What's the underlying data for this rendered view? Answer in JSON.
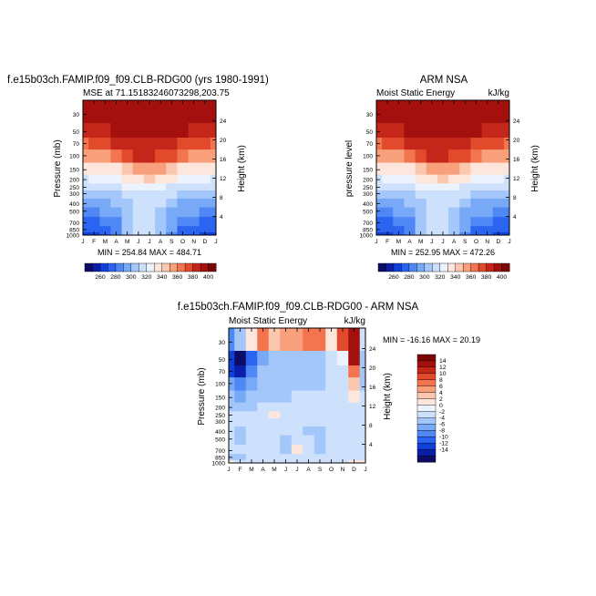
{
  "month_labels": [
    "J",
    "F",
    "M",
    "A",
    "M",
    "J",
    "J",
    "A",
    "S",
    "O",
    "N",
    "D",
    "J"
  ],
  "pressure_ticks": [
    "30",
    "50",
    "70",
    "100",
    "150",
    "200",
    "250",
    "300",
    "400",
    "500",
    "700",
    "850",
    "1000"
  ],
  "panels": [
    {
      "title": "f.e15b03ch.FAMIP.f09_f09.CLB-RDG00 (yrs 1980-1991)",
      "left_label": "MSE at 71.15183246073298,203.75",
      "right_label": "",
      "ylabel": "Pressure (mb)",
      "ylabel2": "Height (km)",
      "stats": "MIN = 254.84  MAX = 484.71",
      "height_ticks": [
        "24",
        "20",
        "16",
        "12",
        "8",
        "4"
      ]
    },
    {
      "title": "ARM NSA",
      "left_label": "Moist Static Energy",
      "right_label": "kJ/kg",
      "ylabel": "pressure  level",
      "ylabel2": "Height (km)",
      "stats": "MIN = 252.95  MAX = 472.26",
      "height_ticks": [
        "24",
        "20",
        "16",
        "12",
        "8",
        "4"
      ]
    },
    {
      "title": "f.e15b03ch.FAMIP.f09_f09.CLB-RDG00 - ARM NSA",
      "left_label": "Moist Static Energy",
      "right_label": "kJ/kg",
      "ylabel": "Pressure (mb)",
      "ylabel2": "Height (km)",
      "stats": "MIN = -16.16  MAX =  20.19",
      "height_ticks": [
        "24",
        "20",
        "16",
        "12",
        "8",
        "4"
      ]
    }
  ],
  "colorbar_top": {
    "colors": [
      "#0c0c66",
      "#0a1ea8",
      "#1040d8",
      "#2a64f0",
      "#4f87f5",
      "#78a9f7",
      "#a3c6fb",
      "#cde0fc",
      "#ecf3fe",
      "#fde7dc",
      "#fbc7ae",
      "#f8a07c",
      "#f2754f",
      "#e14a2a",
      "#c5261a",
      "#a3100d",
      "#7a0505"
    ],
    "labels": [
      "260",
      "280",
      "300",
      "320",
      "340",
      "360",
      "380",
      "400"
    ]
  },
  "colorbar_diff": {
    "colors": [
      "#0c0c66",
      "#0a1ea8",
      "#1040d8",
      "#2a64f0",
      "#4f87f5",
      "#78a9f7",
      "#a3c6fb",
      "#cde0fc",
      "#ecf3fe",
      "#fde7dc",
      "#fbc7ae",
      "#f8a07c",
      "#f2754f",
      "#e14a2a",
      "#c5261a",
      "#a3100d",
      "#7a0505"
    ],
    "labels": [
      "14",
      "12",
      "10",
      "8",
      "6",
      "4",
      "2",
      "0",
      "-2",
      "-4",
      "-6",
      "-8",
      "-10",
      "-12",
      "-14"
    ]
  },
  "chart_data": [
    {
      "type": "heatmap",
      "title": "f.e15b03ch.FAMIP.f09_f09.CLB-RDG00 (yrs 1980-1991)",
      "subtitle": "MSE at 71.15183246073298,203.75",
      "xlabel": "",
      "ylabel": "Pressure (mb)",
      "ylabel_right": "Height (km)",
      "x": [
        "J",
        "F",
        "M",
        "A",
        "M",
        "J",
        "J",
        "A",
        "S",
        "O",
        "N",
        "D",
        "J"
      ],
      "y_pressure": [
        30,
        50,
        70,
        100,
        150,
        200,
        250,
        300,
        400,
        500,
        700,
        850,
        1000
      ],
      "ylim": [
        1000,
        20
      ],
      "min": 254.84,
      "max": 484.71,
      "colorbar_levels": [
        260,
        270,
        280,
        290,
        300,
        310,
        320,
        330,
        340,
        350,
        360,
        370,
        380,
        390,
        400
      ],
      "values": [
        [
          400,
          400,
          400,
          400,
          400,
          400,
          400,
          400,
          400,
          400,
          400,
          400,
          400
        ],
        [
          396,
          397,
          398,
          400,
          400,
          400,
          400,
          400,
          400,
          400,
          398,
          397,
          396
        ],
        [
          378,
          380,
          384,
          390,
          395,
          398,
          398,
          397,
          392,
          388,
          382,
          380,
          378
        ],
        [
          362,
          364,
          368,
          375,
          384,
          390,
          390,
          388,
          380,
          372,
          366,
          364,
          362
        ],
        [
          340,
          341,
          343,
          349,
          358,
          366,
          366,
          363,
          354,
          347,
          343,
          341,
          340
        ],
        [
          329,
          330,
          331,
          335,
          343,
          349,
          350,
          347,
          340,
          334,
          331,
          330,
          329
        ],
        [
          322,
          322,
          323,
          326,
          332,
          336,
          337,
          335,
          329,
          325,
          323,
          322,
          322
        ],
        [
          316,
          316,
          317,
          318,
          323,
          327,
          328,
          326,
          321,
          318,
          317,
          316,
          316
        ],
        [
          306,
          306,
          307,
          310,
          318,
          323,
          324,
          321,
          313,
          309,
          307,
          306,
          306
        ],
        [
          299,
          299,
          300,
          305,
          315,
          321,
          322,
          319,
          309,
          303,
          300,
          299,
          299
        ],
        [
          288,
          288,
          290,
          298,
          313,
          320,
          321,
          317,
          305,
          294,
          290,
          288,
          288
        ],
        [
          282,
          282,
          285,
          294,
          311,
          320,
          321,
          316,
          301,
          289,
          285,
          282,
          282
        ],
        [
          277,
          276,
          280,
          292,
          310,
          320,
          321,
          315,
          299,
          286,
          280,
          277,
          277
        ]
      ]
    },
    {
      "type": "heatmap",
      "title": "ARM NSA",
      "subtitle": "Moist Static Energy",
      "xlabel": "",
      "ylabel": "pressure  level",
      "ylabel_right": "Height (km)",
      "units": "kJ/kg",
      "x": [
        "J",
        "F",
        "M",
        "A",
        "M",
        "J",
        "J",
        "A",
        "S",
        "O",
        "N",
        "D",
        "J"
      ],
      "y_pressure": [
        30,
        50,
        70,
        100,
        150,
        200,
        250,
        300,
        400,
        500,
        700,
        850,
        1000
      ],
      "ylim": [
        1000,
        20
      ],
      "min": 252.95,
      "max": 472.26,
      "colorbar_levels": [
        260,
        270,
        280,
        290,
        300,
        310,
        320,
        330,
        340,
        350,
        360,
        370,
        380,
        390,
        400
      ],
      "values": [
        [
          400,
          400,
          400,
          400,
          400,
          400,
          400,
          400,
          400,
          400,
          400,
          400,
          400
        ],
        [
          396,
          397,
          398,
          400,
          400,
          400,
          400,
          400,
          400,
          400,
          398,
          397,
          396
        ],
        [
          378,
          380,
          384,
          390,
          395,
          398,
          398,
          397,
          392,
          388,
          382,
          380,
          378
        ],
        [
          362,
          364,
          368,
          375,
          384,
          390,
          390,
          388,
          380,
          372,
          366,
          364,
          362
        ],
        [
          340,
          341,
          343,
          349,
          358,
          366,
          366,
          363,
          354,
          347,
          343,
          341,
          340
        ],
        [
          329,
          330,
          331,
          335,
          343,
          349,
          350,
          347,
          340,
          334,
          331,
          330,
          329
        ],
        [
          322,
          322,
          323,
          326,
          332,
          336,
          337,
          335,
          329,
          325,
          323,
          322,
          322
        ],
        [
          316,
          316,
          317,
          318,
          323,
          327,
          328,
          326,
          321,
          318,
          317,
          316,
          316
        ],
        [
          306,
          306,
          307,
          310,
          318,
          323,
          324,
          321,
          313,
          309,
          307,
          306,
          306
        ],
        [
          299,
          299,
          300,
          305,
          315,
          321,
          322,
          319,
          309,
          303,
          300,
          299,
          299
        ],
        [
          288,
          288,
          290,
          298,
          313,
          320,
          321,
          317,
          305,
          294,
          290,
          288,
          288
        ],
        [
          282,
          282,
          285,
          294,
          311,
          320,
          321,
          316,
          301,
          289,
          285,
          282,
          282
        ],
        [
          277,
          276,
          280,
          292,
          310,
          320,
          321,
          315,
          299,
          286,
          280,
          277,
          277
        ]
      ]
    },
    {
      "type": "heatmap",
      "title": "f.e15b03ch.FAMIP.f09_f09.CLB-RDG00 - ARM NSA",
      "subtitle": "Moist Static Energy",
      "xlabel": "",
      "ylabel": "Pressure (mb)",
      "ylabel_right": "Height (km)",
      "units": "kJ/kg",
      "x": [
        "J",
        "F",
        "M",
        "A",
        "M",
        "J",
        "J",
        "A",
        "S",
        "O",
        "N",
        "D",
        "J"
      ],
      "y_pressure": [
        30,
        50,
        70,
        100,
        150,
        200,
        250,
        300,
        400,
        500,
        700,
        850,
        1000
      ],
      "ylim": [
        1000,
        20
      ],
      "min": -16.16,
      "max": 20.19,
      "colorbar_levels": [
        -14,
        -12,
        -10,
        -8,
        -6,
        -4,
        -2,
        0,
        2,
        4,
        6,
        8,
        10,
        12,
        14
      ],
      "values": [
        [
          -8,
          -3,
          3,
          8,
          5,
          6,
          7,
          9,
          8,
          3,
          10,
          18,
          -2
        ],
        [
          -12,
          -16,
          -9,
          -5,
          -4,
          -3,
          -3,
          -3,
          -3,
          -2,
          1,
          14,
          -3
        ],
        [
          -11,
          -14,
          -8,
          -4,
          -3,
          -3,
          -3,
          -3,
          -3,
          -2,
          -1,
          8,
          -3
        ],
        [
          -6,
          -8,
          -5,
          -4,
          -3,
          -3,
          -3,
          -3,
          -3,
          -2,
          -1,
          5,
          -3
        ],
        [
          -4,
          -5,
          -4,
          -3,
          -3,
          -3,
          -2,
          -2,
          -2,
          -2,
          -1,
          2,
          -2
        ],
        [
          -3,
          -3,
          -3,
          -2,
          -2,
          -2,
          -2,
          -2,
          -2,
          -2,
          -1,
          -1,
          -2
        ],
        [
          -2,
          -2,
          -2,
          -2,
          2,
          -2,
          -2,
          -2,
          -2,
          -2,
          -1,
          -1,
          -2
        ],
        [
          -2,
          -2,
          -2,
          -1,
          -1,
          -1,
          -1,
          -2,
          -1,
          -1,
          -1,
          -1,
          -2
        ],
        [
          -2,
          -3,
          -2,
          -2,
          -2,
          -2,
          -2,
          -3,
          -4,
          -2,
          -1,
          -1,
          -2
        ],
        [
          -2,
          -4,
          -2,
          -2,
          -2,
          -3,
          -2,
          -2,
          -3,
          -2,
          -1,
          -1,
          -2
        ],
        [
          -2,
          -2,
          -1,
          -2,
          -2,
          -3,
          2,
          -2,
          -3,
          -2,
          -1,
          -1,
          -2
        ],
        [
          -3,
          -3,
          -2,
          -2,
          -2,
          -2,
          -2,
          -2,
          -2,
          -2,
          -1,
          -1,
          -2
        ],
        [
          2,
          -2,
          -2,
          -2,
          -2,
          -2,
          -2,
          -2,
          -2,
          -2,
          -1,
          2,
          2
        ]
      ]
    }
  ]
}
